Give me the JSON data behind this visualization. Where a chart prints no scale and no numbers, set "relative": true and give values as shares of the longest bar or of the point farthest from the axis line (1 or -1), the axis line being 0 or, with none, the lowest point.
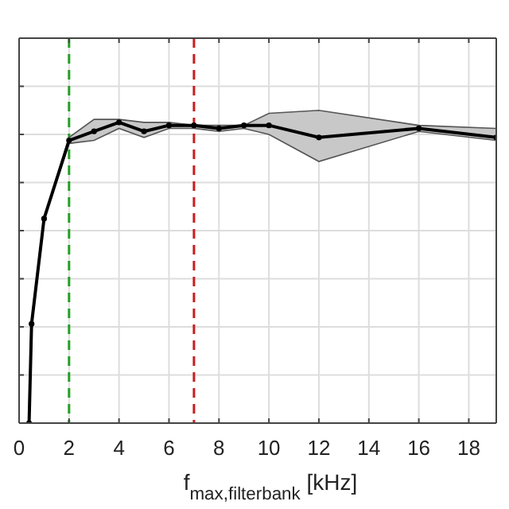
{
  "chart_data": {
    "type": "line",
    "relative": true,
    "xlabel": "f$_{max,filterbank}$ [kHz]",
    "xlim": [
      0,
      19.1
    ],
    "xticks": [
      0,
      2,
      4,
      6,
      8,
      10,
      12,
      14,
      16,
      18
    ],
    "grid": true,
    "marker": "circle",
    "line_style": "solid",
    "series": [
      {
        "color": "#000000",
        "x": [
          0.4,
          0.5,
          1,
          2,
          3,
          4,
          5,
          6,
          7,
          8,
          9,
          10,
          12,
          16,
          19.1
        ],
        "values": [
          0,
          0.33,
          0.68,
          0.94,
          0.97,
          1,
          0.97,
          0.99,
          0.99,
          0.98,
          0.99,
          0.99,
          0.95,
          0.98,
          0.95
        ],
        "lower": [
          0,
          0.33,
          0.68,
          0.93,
          0.94,
          0.98,
          0.95,
          0.98,
          0.98,
          0.97,
          0.98,
          0.96,
          0.87,
          0.97,
          0.94
        ],
        "upper": [
          0,
          0.33,
          0.68,
          0.95,
          1.01,
          1.01,
          1.0,
          1.0,
          0.99,
          0.99,
          0.99,
          1.03,
          1.04,
          0.99,
          0.98
        ]
      }
    ],
    "ref_lines": [
      {
        "axis": "x",
        "value": 2,
        "color": "#22a022",
        "line_style": "dashed"
      },
      {
        "axis": "x",
        "value": 7,
        "color": "#c81e1e",
        "line_style": "dashed"
      }
    ]
  }
}
